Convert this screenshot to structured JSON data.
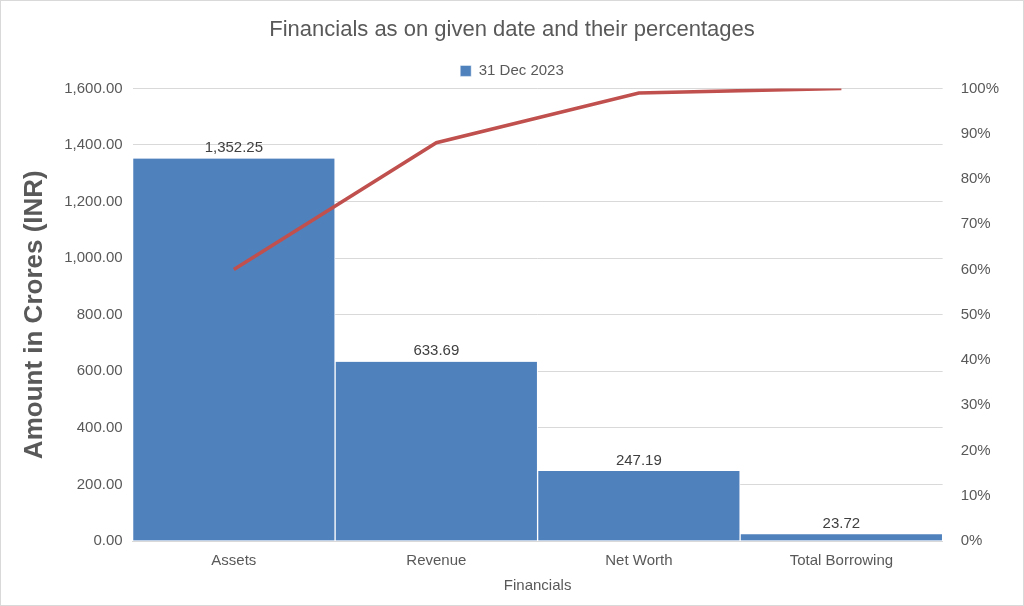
{
  "chart_data": {
    "type": "bar",
    "title": "Financials as on given date and their percentages",
    "x_label": "Financials",
    "y_label": "Amount in Crores (INR)",
    "categories": [
      "Assets",
      "Revenue",
      "Net Worth",
      "Total Borrowing"
    ],
    "series": [
      {
        "name": "31 Dec 2023",
        "type": "bar",
        "color": "#4f81bd",
        "values": [
          1352.25,
          633.69,
          247.19,
          23.72
        ],
        "value_labels": [
          "1,352.25",
          "633.69",
          "247.19",
          "23.72"
        ],
        "data_labels": true
      },
      {
        "type": "line",
        "color": "#c0504d",
        "axis": "y2",
        "marker": "none",
        "line_style": "solid",
        "values": [
          60,
          88,
          99,
          100
        ]
      }
    ],
    "ylim": [
      0,
      1600
    ],
    "yticks": [
      {
        "value": 0,
        "label": "0.00"
      },
      {
        "value": 200,
        "label": "200.00"
      },
      {
        "value": 400,
        "label": "400.00"
      },
      {
        "value": 600,
        "label": "600.00"
      },
      {
        "value": 800,
        "label": "800.00"
      },
      {
        "value": 1000,
        "label": "1,000.00"
      },
      {
        "value": 1200,
        "label": "1,200.00"
      },
      {
        "value": 1400,
        "label": "1,400.00"
      },
      {
        "value": 1600,
        "label": "1,600.00"
      }
    ],
    "y2lim": [
      0,
      100
    ],
    "y2ticks": [
      {
        "value": 0,
        "label": "0%"
      },
      {
        "value": 10,
        "label": "10%"
      },
      {
        "value": 20,
        "label": "20%"
      },
      {
        "value": 30,
        "label": "30%"
      },
      {
        "value": 40,
        "label": "40%"
      },
      {
        "value": 50,
        "label": "50%"
      },
      {
        "value": 60,
        "label": "60%"
      },
      {
        "value": 70,
        "label": "70%"
      },
      {
        "value": 80,
        "label": "80%"
      },
      {
        "value": 90,
        "label": "90%"
      },
      {
        "value": 100,
        "label": "100%"
      }
    ],
    "grid": true,
    "legend": "top"
  }
}
